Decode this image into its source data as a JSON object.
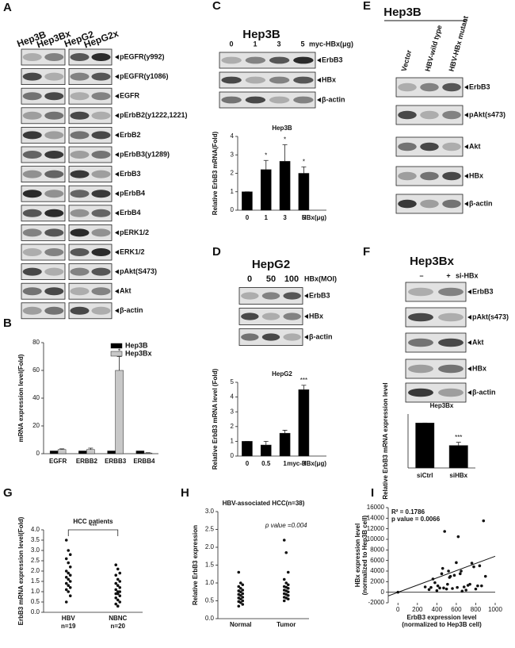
{
  "letters": [
    "A",
    "B",
    "C",
    "D",
    "E",
    "F",
    "G",
    "H",
    "I"
  ],
  "panels": {
    "A": {
      "lanes": [
        "Hep3B",
        "Hep3Bx",
        "HepG2",
        "HepG2x"
      ],
      "bands": [
        "pEGFR(y992)",
        "pEGFR(y1086)",
        "EGFR",
        "pErbB2(y1222,1221)",
        "ErbB2",
        "pErbB3(y1289)",
        "ErbB3",
        "pErbB4",
        "ErbB4",
        "pERK1/2",
        "ERK1/2",
        "pAkt(S473)",
        "Akt",
        "β-actin"
      ]
    },
    "C": {
      "title": "Hep3B",
      "lanes": [
        "0",
        "1",
        "3",
        "5"
      ],
      "lane_unit": "myc-HBx(μg)",
      "bands": [
        "ErbB3",
        "HBx",
        "β-actin"
      ]
    },
    "D": {
      "title": "HepG2",
      "lanes": [
        "0",
        "50",
        "100"
      ],
      "lane_unit": "HBx(MOI)",
      "bands": [
        "ErbB3",
        "HBx",
        "β-actin"
      ]
    },
    "E": {
      "title": "Hep3B",
      "lanes": [
        "Vector",
        "HBV-wild type",
        "HBV-HBx mutant"
      ],
      "bands": [
        "ErbB3",
        "pAkt(s473)",
        "Akt",
        "HBx",
        "β-actin"
      ]
    },
    "F": {
      "title": "Hep3Bx",
      "lanes": [
        "–",
        "+"
      ],
      "lane_unit": "si-HBx",
      "bands": [
        "ErbB3",
        "pAkt(s473)",
        "Akt",
        "HBx",
        "β-actin"
      ]
    }
  },
  "chart_data": [
    {
      "type": "bar",
      "ylabel": "mRNA expression level(Fold)",
      "categories": [
        "EGFR",
        "ERBB2",
        "ERBB3",
        "ERBB4"
      ],
      "series": [
        {
          "name": "Hep3B",
          "color": "#000000",
          "values": [
            2,
            2,
            2,
            2
          ]
        },
        {
          "name": "Hep3Bx",
          "color": "#c8c8c8",
          "values": [
            3,
            3,
            60,
            0.5
          ],
          "errors": [
            0.5,
            1,
            10,
            0.2
          ]
        }
      ],
      "stars": [
        null,
        null,
        "*",
        null
      ],
      "ylim": [
        0,
        80
      ],
      "yticks": [
        0,
        20,
        40,
        60,
        80
      ],
      "legend": "top-right"
    },
    {
      "type": "bar",
      "title": "Hep3B",
      "ylabel": "Relative ErbB3 mRNA(Fold)",
      "xlabel": "HBx(μg)",
      "categories": [
        "0",
        "1",
        "3",
        "5"
      ],
      "values": [
        1,
        2.2,
        2.65,
        2.0
      ],
      "errors": [
        0,
        0.5,
        0.9,
        0.35
      ],
      "color": "#000000",
      "stars": [
        null,
        "*",
        "*",
        "*"
      ],
      "ylim": [
        0,
        4
      ],
      "yticks": [
        0,
        1,
        2,
        3,
        4
      ]
    },
    {
      "type": "bar",
      "title": "HepG2",
      "ylabel": "Relative ErbB3 mRNA level (Fold)",
      "xlabel": "myc-HBx(μg)",
      "categories": [
        "0",
        "0.5",
        "1",
        "3"
      ],
      "values": [
        1,
        0.75,
        1.55,
        4.5
      ],
      "errors": [
        0,
        0.25,
        0.2,
        0.3
      ],
      "color": "#000000",
      "stars": [
        null,
        null,
        null,
        "***"
      ],
      "ylim": [
        0,
        5
      ],
      "yticks": [
        0,
        1,
        2,
        3,
        4,
        5
      ]
    },
    {
      "type": "bar",
      "title": "Hep3Bx",
      "ylabel": "Relative ErbB3 mRNA  expression level",
      "categories": [
        "siCtrl",
        "siHBx"
      ],
      "values": [
        1,
        0.5
      ],
      "errors": [
        0,
        0.07
      ],
      "color": "#000000",
      "stars": [
        null,
        "***"
      ],
      "ylim": [
        0,
        1.2
      ]
    },
    {
      "type": "strip",
      "title": "HCC patients",
      "ylabel": "ErbB3 mRNA expression level(Fold)",
      "categories": [
        "HBV",
        "NBNC"
      ],
      "sublabels": [
        "n=19",
        "n=20"
      ],
      "groups": [
        [
          3.5,
          3.0,
          2.8,
          2.6,
          2.4,
          2.2,
          2.0,
          1.9,
          1.8,
          1.7,
          1.6,
          1.5,
          1.4,
          1.3,
          1.2,
          1.1,
          1.0,
          0.8,
          0.5
        ],
        [
          2.3,
          2.1,
          1.9,
          1.8,
          1.6,
          1.5,
          1.4,
          1.3,
          1.2,
          1.1,
          1.0,
          1.0,
          0.9,
          0.9,
          0.8,
          0.7,
          0.6,
          0.5,
          0.4,
          0.3
        ]
      ],
      "annotation": "***",
      "ylim": [
        0,
        4
      ],
      "yticks": [
        {
          "value": 0,
          "label": "0.0"
        },
        {
          "value": 0.5,
          "label": "0.5"
        },
        {
          "value": 1,
          "label": "1.0"
        },
        {
          "value": 1.5,
          "label": "1.5"
        },
        {
          "value": 2,
          "label": "2.0"
        },
        {
          "value": 2.5,
          "label": "2.5"
        },
        {
          "value": 3,
          "label": "3.0"
        },
        {
          "value": 3.5,
          "label": "3.5"
        },
        {
          "value": 4,
          "label": "4.0"
        }
      ]
    },
    {
      "type": "strip",
      "title": "HBV-associated HCC(n=38)",
      "ylabel": "Relative ErbB3 expression",
      "categories": [
        "Normal",
        "Tumor"
      ],
      "groups": [
        [
          1.3,
          1.0,
          0.95,
          0.9,
          0.85,
          0.8,
          0.78,
          0.75,
          0.7,
          0.68,
          0.65,
          0.6,
          0.58,
          0.55,
          0.5,
          0.48,
          0.45,
          0.4,
          0.35
        ],
        [
          2.2,
          1.85,
          1.3,
          1.1,
          1.0,
          0.95,
          0.9,
          0.88,
          0.85,
          0.8,
          0.78,
          0.75,
          0.7,
          0.68,
          0.65,
          0.6,
          0.58,
          0.55,
          0.5
        ]
      ],
      "annotation": "p value =0.004",
      "ylim": [
        0,
        3
      ],
      "yticks": [
        {
          "value": 0,
          "label": "0.0"
        },
        {
          "value": 0.5,
          "label": "0.5"
        },
        {
          "value": 1,
          "label": "1.0"
        },
        {
          "value": 1.5,
          "label": "1.5"
        },
        {
          "value": 2,
          "label": "2.0"
        },
        {
          "value": 2.5,
          "label": "2.5"
        },
        {
          "value": 3,
          "label": "3.0"
        }
      ]
    },
    {
      "type": "scatter",
      "xlabel": [
        "ErbB3 expression level",
        "(normalized to Hep3B cell)"
      ],
      "ylabel": [
        "HBx expression level",
        "(normalized to Hep3B cell)"
      ],
      "annotations": [
        "R² = 0.1786",
        "p value = 0.0066"
      ],
      "x": [
        0,
        280,
        320,
        340,
        360,
        380,
        400,
        410,
        430,
        450,
        460,
        470,
        480,
        500,
        510,
        520,
        530,
        540,
        560,
        580,
        600,
        610,
        620,
        640,
        650,
        660,
        680,
        700,
        720,
        740,
        760,
        780,
        800,
        820,
        840,
        860,
        880,
        900
      ],
      "y": [
        0,
        1000,
        500,
        900,
        2500,
        1800,
        300,
        1200,
        800,
        3500,
        4500,
        800,
        11500,
        600,
        1500,
        4000,
        2800,
        3000,
        700,
        3200,
        5600,
        900,
        10500,
        3500,
        4000,
        200,
        1000,
        400,
        1300,
        1500,
        5500,
        4800,
        600,
        1200,
        5000,
        1200,
        13500,
        3000
      ],
      "trend_x": [
        -100,
        1000
      ],
      "trend_y": [
        -700,
        6800
      ],
      "xlim": [
        -100,
        1000
      ],
      "xticks": [
        0,
        200,
        400,
        600,
        800,
        1000
      ],
      "ylim": [
        -2000,
        16000
      ],
      "yticks": [
        -2000,
        0,
        2000,
        4000,
        6000,
        8000,
        10000,
        12000,
        14000,
        16000
      ]
    }
  ]
}
